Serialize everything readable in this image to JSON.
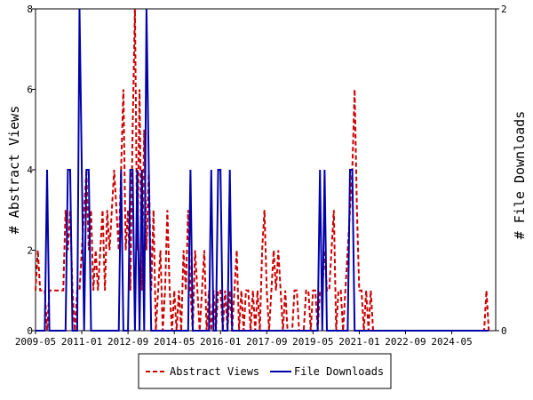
{
  "chart_data": {
    "type": "line",
    "title": "",
    "xlabel": "",
    "ylabel_left": "# Abstract Views",
    "ylabel_right": "# File Downloads",
    "x_start": "2009-05",
    "x_end": "2025-12",
    "x_ticks": [
      "2009-05",
      "2011-01",
      "2012-09",
      "2014-05",
      "2016-01",
      "2017-09",
      "2019-05",
      "2021-01",
      "2022-09",
      "2024-05"
    ],
    "ylim_left": [
      0,
      8
    ],
    "yticks_left": [
      "0",
      "2",
      "4",
      "6",
      "8"
    ],
    "ylim_right": [
      0,
      2
    ],
    "yticks_right": [
      "0",
      "2"
    ],
    "grid": false,
    "legend_position": "bottom-center",
    "series": [
      {
        "name": "Abstract Views",
        "axis": "left",
        "color": "#cc0000",
        "style": "dashed",
        "points": [
          [
            "2009-05",
            1
          ],
          [
            "2009-06",
            2
          ],
          [
            "2009-07",
            1
          ],
          [
            "2009-08",
            1
          ],
          [
            "2009-09",
            1
          ],
          [
            "2009-10",
            0
          ],
          [
            "2009-11",
            1
          ],
          [
            "2009-12",
            1
          ],
          [
            "2010-01",
            1
          ],
          [
            "2010-02",
            1
          ],
          [
            "2010-03",
            1
          ],
          [
            "2010-04",
            1
          ],
          [
            "2010-05",
            1
          ],
          [
            "2010-06",
            3
          ],
          [
            "2010-07",
            2
          ],
          [
            "2010-08",
            3
          ],
          [
            "2010-09",
            1
          ],
          [
            "2010-10",
            0
          ],
          [
            "2010-11",
            1
          ],
          [
            "2010-12",
            1
          ],
          [
            "2011-01",
            2
          ],
          [
            "2011-02",
            3
          ],
          [
            "2011-03",
            4
          ],
          [
            "2011-04",
            2
          ],
          [
            "2011-05",
            3
          ],
          [
            "2011-06",
            1
          ],
          [
            "2011-07",
            2
          ],
          [
            "2011-08",
            1
          ],
          [
            "2011-09",
            2
          ],
          [
            "2011-10",
            3
          ],
          [
            "2011-11",
            1
          ],
          [
            "2011-12",
            3
          ],
          [
            "2012-01",
            2
          ],
          [
            "2012-02",
            3
          ],
          [
            "2012-03",
            4
          ],
          [
            "2012-04",
            3
          ],
          [
            "2012-05",
            2
          ],
          [
            "2012-06",
            4
          ],
          [
            "2012-07",
            6
          ],
          [
            "2012-08",
            2
          ],
          [
            "2012-09",
            3
          ],
          [
            "2012-10",
            1
          ],
          [
            "2012-11",
            5
          ],
          [
            "2012-12",
            8
          ],
          [
            "2013-01",
            2
          ],
          [
            "2013-02",
            6
          ],
          [
            "2013-03",
            1
          ],
          [
            "2013-04",
            5
          ],
          [
            "2013-05",
            2
          ],
          [
            "2013-06",
            4
          ],
          [
            "2013-07",
            1
          ],
          [
            "2013-08",
            3
          ],
          [
            "2013-09",
            0
          ],
          [
            "2013-10",
            1
          ],
          [
            "2013-11",
            2
          ],
          [
            "2013-12",
            0
          ],
          [
            "2014-01",
            1
          ],
          [
            "2014-02",
            3
          ],
          [
            "2014-03",
            1
          ],
          [
            "2014-04",
            0
          ],
          [
            "2014-05",
            1
          ],
          [
            "2014-06",
            0
          ],
          [
            "2014-07",
            1
          ],
          [
            "2014-08",
            0
          ],
          [
            "2014-09",
            2
          ],
          [
            "2014-10",
            1
          ],
          [
            "2014-11",
            3
          ],
          [
            "2014-12",
            1
          ],
          [
            "2015-01",
            0
          ],
          [
            "2015-02",
            2
          ],
          [
            "2015-03",
            1
          ],
          [
            "2015-04",
            0
          ],
          [
            "2015-05",
            1
          ],
          [
            "2015-06",
            2
          ],
          [
            "2015-07",
            0
          ],
          [
            "2015-08",
            1
          ],
          [
            "2015-09",
            0
          ],
          [
            "2015-10",
            1
          ],
          [
            "2015-11",
            0
          ],
          [
            "2015-12",
            1
          ],
          [
            "2016-01",
            1
          ],
          [
            "2016-02",
            0
          ],
          [
            "2016-03",
            1
          ],
          [
            "2016-04",
            0
          ],
          [
            "2016-05",
            1
          ],
          [
            "2016-06",
            0
          ],
          [
            "2016-07",
            1
          ],
          [
            "2016-08",
            2
          ],
          [
            "2016-09",
            0
          ],
          [
            "2016-10",
            1
          ],
          [
            "2016-11",
            0
          ],
          [
            "2016-12",
            1
          ],
          [
            "2017-01",
            1
          ],
          [
            "2017-02",
            0
          ],
          [
            "2017-03",
            1
          ],
          [
            "2017-04",
            0
          ],
          [
            "2017-05",
            1
          ],
          [
            "2017-06",
            0
          ],
          [
            "2017-07",
            2
          ],
          [
            "2017-08",
            3
          ],
          [
            "2017-09",
            1
          ],
          [
            "2017-10",
            0
          ],
          [
            "2017-11",
            1
          ],
          [
            "2017-12",
            2
          ],
          [
            "2018-01",
            1
          ],
          [
            "2018-02",
            2
          ],
          [
            "2018-03",
            1
          ],
          [
            "2018-04",
            0
          ],
          [
            "2018-05",
            1
          ],
          [
            "2018-06",
            0
          ],
          [
            "2018-07",
            0
          ],
          [
            "2018-08",
            0
          ],
          [
            "2018-09",
            1
          ],
          [
            "2018-10",
            1
          ],
          [
            "2018-11",
            0
          ],
          [
            "2018-12",
            0
          ],
          [
            "2019-01",
            0
          ],
          [
            "2019-02",
            1
          ],
          [
            "2019-03",
            1
          ],
          [
            "2019-04",
            0
          ],
          [
            "2019-05",
            1
          ],
          [
            "2019-06",
            1
          ],
          [
            "2019-07",
            0
          ],
          [
            "2019-08",
            1
          ],
          [
            "2019-09",
            1
          ],
          [
            "2019-10",
            2
          ],
          [
            "2019-11",
            1
          ],
          [
            "2019-12",
            1
          ],
          [
            "2020-01",
            2
          ],
          [
            "2020-02",
            3
          ],
          [
            "2020-03",
            0
          ],
          [
            "2020-04",
            1
          ],
          [
            "2020-05",
            1
          ],
          [
            "2020-06",
            0
          ],
          [
            "2020-07",
            1
          ],
          [
            "2020-08",
            2
          ],
          [
            "2020-09",
            3
          ],
          [
            "2020-10",
            4
          ],
          [
            "2020-11",
            6
          ],
          [
            "2020-12",
            3
          ],
          [
            "2021-01",
            1
          ],
          [
            "2021-02",
            1
          ],
          [
            "2021-03",
            0
          ],
          [
            "2021-04",
            1
          ],
          [
            "2021-05",
            0
          ],
          [
            "2021-06",
            1
          ],
          [
            "2021-07",
            0
          ],
          [
            "2021-08",
            0
          ],
          [
            "2025-07",
            0
          ],
          [
            "2025-08",
            1
          ],
          [
            "2025-09",
            0
          ]
        ]
      },
      {
        "name": "File Downloads",
        "axis": "right",
        "color": "#0000aa",
        "style": "solid",
        "points": [
          [
            "2009-05",
            0
          ],
          [
            "2009-06",
            0
          ],
          [
            "2009-07",
            0
          ],
          [
            "2009-08",
            0
          ],
          [
            "2009-09",
            0
          ],
          [
            "2009-10",
            1
          ],
          [
            "2009-11",
            0
          ],
          [
            "2009-12",
            0
          ],
          [
            "2010-01",
            0
          ],
          [
            "2010-02",
            0
          ],
          [
            "2010-03",
            0
          ],
          [
            "2010-04",
            0
          ],
          [
            "2010-05",
            0
          ],
          [
            "2010-06",
            0
          ],
          [
            "2010-07",
            1
          ],
          [
            "2010-08",
            1
          ],
          [
            "2010-09",
            0
          ],
          [
            "2010-10",
            0
          ],
          [
            "2010-11",
            0
          ],
          [
            "2010-12",
            2
          ],
          [
            "2011-01",
            1
          ],
          [
            "2011-02",
            0
          ],
          [
            "2011-03",
            1
          ],
          [
            "2011-04",
            1
          ],
          [
            "2011-05",
            0
          ],
          [
            "2011-06",
            0
          ],
          [
            "2011-07",
            0
          ],
          [
            "2011-08",
            0
          ],
          [
            "2011-09",
            0
          ],
          [
            "2011-10",
            0
          ],
          [
            "2011-11",
            0
          ],
          [
            "2011-12",
            0
          ],
          [
            "2012-01",
            0
          ],
          [
            "2012-02",
            0
          ],
          [
            "2012-03",
            0
          ],
          [
            "2012-04",
            0
          ],
          [
            "2012-05",
            0
          ],
          [
            "2012-06",
            1
          ],
          [
            "2012-07",
            0
          ],
          [
            "2012-08",
            0
          ],
          [
            "2012-09",
            0
          ],
          [
            "2012-10",
            1
          ],
          [
            "2012-11",
            1
          ],
          [
            "2012-12",
            0
          ],
          [
            "2013-01",
            1
          ],
          [
            "2013-02",
            0
          ],
          [
            "2013-03",
            1
          ],
          [
            "2013-04",
            0
          ],
          [
            "2013-05",
            2
          ],
          [
            "2013-06",
            1
          ],
          [
            "2013-07",
            0
          ],
          [
            "2013-08",
            0
          ],
          [
            "2013-09",
            0
          ],
          [
            "2013-10",
            0
          ],
          [
            "2013-11",
            0
          ],
          [
            "2013-12",
            0
          ],
          [
            "2014-01",
            0
          ],
          [
            "2014-02",
            0
          ],
          [
            "2014-03",
            0
          ],
          [
            "2014-04",
            0
          ],
          [
            "2014-05",
            0
          ],
          [
            "2014-06",
            0
          ],
          [
            "2014-07",
            0
          ],
          [
            "2014-08",
            0
          ],
          [
            "2014-09",
            0
          ],
          [
            "2014-10",
            0
          ],
          [
            "2014-11",
            0
          ],
          [
            "2014-12",
            1
          ],
          [
            "2015-01",
            0
          ],
          [
            "2015-02",
            0
          ],
          [
            "2015-03",
            0
          ],
          [
            "2015-04",
            0
          ],
          [
            "2015-05",
            0
          ],
          [
            "2015-06",
            0
          ],
          [
            "2015-07",
            0
          ],
          [
            "2015-08",
            0
          ],
          [
            "2015-09",
            1
          ],
          [
            "2015-10",
            0
          ],
          [
            "2015-11",
            0
          ],
          [
            "2015-12",
            1
          ],
          [
            "2016-01",
            1
          ],
          [
            "2016-02",
            0
          ],
          [
            "2016-03",
            0
          ],
          [
            "2016-04",
            0
          ],
          [
            "2016-05",
            1
          ],
          [
            "2016-06",
            0
          ],
          [
            "2016-07",
            0
          ],
          [
            "2016-08",
            0
          ],
          [
            "2016-09",
            0
          ],
          [
            "2016-10",
            0
          ],
          [
            "2016-11",
            0
          ],
          [
            "2016-12",
            0
          ],
          [
            "2017-01",
            0
          ],
          [
            "2017-02",
            0
          ],
          [
            "2017-03",
            0
          ],
          [
            "2017-04",
            0
          ],
          [
            "2017-05",
            0
          ],
          [
            "2017-06",
            0
          ],
          [
            "2017-07",
            0
          ],
          [
            "2017-08",
            0
          ],
          [
            "2017-09",
            0
          ],
          [
            "2017-10",
            0
          ],
          [
            "2017-11",
            0
          ],
          [
            "2017-12",
            0
          ],
          [
            "2018-01",
            0
          ],
          [
            "2018-02",
            0
          ],
          [
            "2018-03",
            0
          ],
          [
            "2018-04",
            0
          ],
          [
            "2018-05",
            0
          ],
          [
            "2018-06",
            0
          ],
          [
            "2018-07",
            0
          ],
          [
            "2018-08",
            0
          ],
          [
            "2018-09",
            0
          ],
          [
            "2018-10",
            0
          ],
          [
            "2018-11",
            0
          ],
          [
            "2018-12",
            0
          ],
          [
            "2019-01",
            0
          ],
          [
            "2019-02",
            0
          ],
          [
            "2019-03",
            0
          ],
          [
            "2019-04",
            0
          ],
          [
            "2019-05",
            0
          ],
          [
            "2019-06",
            0
          ],
          [
            "2019-07",
            0
          ],
          [
            "2019-08",
            1
          ],
          [
            "2019-09",
            0
          ],
          [
            "2019-10",
            1
          ],
          [
            "2019-11",
            0
          ],
          [
            "2019-12",
            0
          ],
          [
            "2020-01",
            0
          ],
          [
            "2020-02",
            0
          ],
          [
            "2020-03",
            0
          ],
          [
            "2020-04",
            0
          ],
          [
            "2020-05",
            0
          ],
          [
            "2020-06",
            0
          ],
          [
            "2020-07",
            0
          ],
          [
            "2020-08",
            0
          ],
          [
            "2020-09",
            1
          ],
          [
            "2020-10",
            1
          ],
          [
            "2020-11",
            0
          ],
          [
            "2020-12",
            0
          ],
          [
            "2021-01",
            0
          ],
          [
            "2025-09",
            0
          ]
        ]
      }
    ]
  }
}
